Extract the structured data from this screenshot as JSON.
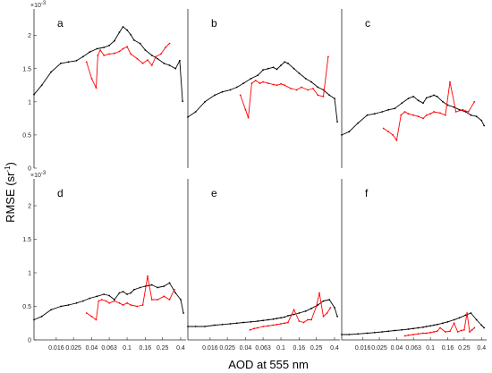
{
  "chart_data": {
    "type": "line",
    "layout": "2x3 small multiples",
    "xlabel": "AOD at 555 nm",
    "ylabel": "RMSE (sr",
    "ylabel_sup": "-1",
    "ylabel_close": ")",
    "y_exponent_label": "×10",
    "y_exponent_sup": "-3",
    "x_scale": "log",
    "xlim": [
      0.009,
      0.46
    ],
    "x_ticks": [
      0.016,
      0.025,
      0.04,
      0.063,
      0.1,
      0.16,
      0.25,
      0.4
    ],
    "x_tick_labels": [
      "0.016",
      "0.025",
      "0.04",
      "0.063",
      "0.1",
      "0.16",
      "0.25",
      "0.4"
    ],
    "ylim": [
      0,
      0.0024
    ],
    "y_ticks": [
      0,
      0.0005,
      0.001,
      0.0015,
      0.002
    ],
    "y_tick_labels": [
      "0",
      "0.5",
      "1",
      "1.5",
      "2"
    ],
    "series_colors": {
      "black": "#000000",
      "red": "#ff0000"
    },
    "grid": false,
    "panels": [
      {
        "id": "a",
        "black": {
          "x": [
            0.009,
            0.011,
            0.014,
            0.018,
            0.022,
            0.027,
            0.032,
            0.038,
            0.046,
            0.055,
            0.063,
            0.072,
            0.082,
            0.09,
            0.1,
            0.11,
            0.12,
            0.14,
            0.16,
            0.19,
            0.22,
            0.26,
            0.3,
            0.35,
            0.39,
            0.42
          ],
          "y": [
            0.00111,
            0.00125,
            0.00145,
            0.00158,
            0.0016,
            0.00162,
            0.00168,
            0.00175,
            0.0018,
            0.00182,
            0.00185,
            0.00192,
            0.00205,
            0.00213,
            0.00208,
            0.00201,
            0.00193,
            0.00188,
            0.00178,
            0.0017,
            0.00165,
            0.00158,
            0.00155,
            0.0015,
            0.00162,
            0.00101
          ]
        },
        "red": {
          "x": [
            0.035,
            0.04,
            0.045,
            0.047,
            0.05,
            0.055,
            0.063,
            0.072,
            0.082,
            0.09,
            0.1,
            0.11,
            0.13,
            0.15,
            0.17,
            0.19,
            0.21,
            0.24,
            0.27,
            0.3
          ],
          "y": [
            0.0016,
            0.00135,
            0.00121,
            0.0017,
            0.00178,
            0.0017,
            0.00172,
            0.00173,
            0.00176,
            0.0018,
            0.00183,
            0.00172,
            0.00165,
            0.00158,
            0.00163,
            0.00155,
            0.00168,
            0.00172,
            0.00182,
            0.00188
          ]
        }
      },
      {
        "id": "b",
        "black": {
          "x": [
            0.009,
            0.011,
            0.014,
            0.018,
            0.022,
            0.027,
            0.032,
            0.038,
            0.046,
            0.055,
            0.063,
            0.072,
            0.082,
            0.09,
            0.1,
            0.11,
            0.12,
            0.14,
            0.16,
            0.19,
            0.22,
            0.26,
            0.3,
            0.35,
            0.4,
            0.43
          ],
          "y": [
            0.00077,
            0.00085,
            0.001,
            0.0011,
            0.00115,
            0.00118,
            0.00122,
            0.00128,
            0.00135,
            0.0014,
            0.00148,
            0.0015,
            0.00152,
            0.00149,
            0.00155,
            0.0016,
            0.00158,
            0.0015,
            0.00143,
            0.00135,
            0.0013,
            0.00122,
            0.00118,
            0.0011,
            0.00105,
            0.0007
          ]
        },
        "red": {
          "x": [
            0.035,
            0.04,
            0.043,
            0.047,
            0.052,
            0.058,
            0.063,
            0.072,
            0.082,
            0.09,
            0.1,
            0.11,
            0.13,
            0.15,
            0.17,
            0.2,
            0.23,
            0.26,
            0.3,
            0.34
          ],
          "y": [
            0.0011,
            0.00088,
            0.00076,
            0.00128,
            0.00132,
            0.00128,
            0.0013,
            0.00128,
            0.00126,
            0.00125,
            0.00127,
            0.00125,
            0.0012,
            0.00118,
            0.00122,
            0.00118,
            0.0012,
            0.0011,
            0.00108,
            0.00168
          ]
        }
      },
      {
        "id": "c",
        "black": {
          "x": [
            0.009,
            0.011,
            0.014,
            0.018,
            0.022,
            0.027,
            0.032,
            0.038,
            0.046,
            0.055,
            0.063,
            0.072,
            0.082,
            0.09,
            0.1,
            0.11,
            0.12,
            0.14,
            0.16,
            0.19,
            0.22,
            0.26,
            0.3,
            0.35,
            0.4,
            0.43
          ],
          "y": [
            0.0005,
            0.00055,
            0.00068,
            0.0008,
            0.00082,
            0.00085,
            0.00088,
            0.0009,
            0.00098,
            0.00105,
            0.00108,
            0.00102,
            0.00098,
            0.00106,
            0.00108,
            0.0011,
            0.00108,
            0.001,
            0.00095,
            0.00092,
            0.00088,
            0.00085,
            0.0008,
            0.00078,
            0.00072,
            0.00064
          ]
        },
        "red": {
          "x": [
            0.028,
            0.032,
            0.036,
            0.04,
            0.045,
            0.05,
            0.055,
            0.063,
            0.072,
            0.082,
            0.09,
            0.1,
            0.11,
            0.13,
            0.15,
            0.17,
            0.2,
            0.24,
            0.28,
            0.33
          ],
          "y": [
            0.0006,
            0.00055,
            0.0005,
            0.00042,
            0.0008,
            0.00085,
            0.00082,
            0.0008,
            0.00078,
            0.00075,
            0.0008,
            0.00082,
            0.00085,
            0.00083,
            0.0008,
            0.0013,
            0.00085,
            0.00088,
            0.00085,
            0.001
          ]
        }
      },
      {
        "id": "d",
        "black": {
          "x": [
            0.009,
            0.011,
            0.014,
            0.018,
            0.022,
            0.027,
            0.032,
            0.038,
            0.046,
            0.055,
            0.063,
            0.072,
            0.082,
            0.09,
            0.1,
            0.11,
            0.12,
            0.14,
            0.16,
            0.19,
            0.22,
            0.26,
            0.3,
            0.35,
            0.4,
            0.43
          ],
          "y": [
            0.0003,
            0.00035,
            0.00045,
            0.0005,
            0.00052,
            0.00055,
            0.00058,
            0.00062,
            0.00065,
            0.00068,
            0.00066,
            0.0006,
            0.0007,
            0.00072,
            0.00068,
            0.0007,
            0.00075,
            0.00078,
            0.0008,
            0.00082,
            0.00078,
            0.0008,
            0.00085,
            0.0007,
            0.0006,
            0.0004
          ]
        },
        "red": {
          "x": [
            0.035,
            0.04,
            0.045,
            0.048,
            0.052,
            0.058,
            0.063,
            0.072,
            0.082,
            0.09,
            0.1,
            0.11,
            0.13,
            0.15,
            0.17,
            0.19,
            0.22,
            0.26,
            0.3,
            0.34
          ],
          "y": [
            0.0004,
            0.00035,
            0.0003,
            0.00058,
            0.0006,
            0.00058,
            0.00055,
            0.00058,
            0.00055,
            0.00052,
            0.00055,
            0.00052,
            0.0005,
            0.00052,
            0.00095,
            0.0006,
            0.0006,
            0.00065,
            0.0006,
            0.00075
          ]
        }
      },
      {
        "id": "e",
        "black": {
          "x": [
            0.009,
            0.011,
            0.014,
            0.018,
            0.022,
            0.027,
            0.032,
            0.038,
            0.046,
            0.055,
            0.063,
            0.072,
            0.082,
            0.09,
            0.1,
            0.11,
            0.12,
            0.14,
            0.16,
            0.19,
            0.22,
            0.26,
            0.3,
            0.35,
            0.4,
            0.43
          ],
          "y": [
            0.0002,
            0.0002,
            0.0002,
            0.00022,
            0.00023,
            0.00024,
            0.00025,
            0.00026,
            0.00027,
            0.00028,
            0.00029,
            0.0003,
            0.00031,
            0.00032,
            0.00033,
            0.00034,
            0.00036,
            0.00038,
            0.0004,
            0.00043,
            0.00047,
            0.00052,
            0.00058,
            0.0006,
            0.00048,
            0.00035
          ]
        },
        "red": {
          "x": [
            0.045,
            0.05,
            0.055,
            0.063,
            0.072,
            0.082,
            0.09,
            0.1,
            0.11,
            0.12,
            0.14,
            0.16,
            0.18,
            0.2,
            0.22,
            0.25,
            0.27,
            0.3,
            0.33,
            0.36
          ],
          "y": [
            0.00015,
            0.00017,
            0.00018,
            0.0002,
            0.00021,
            0.00022,
            0.00023,
            0.00024,
            0.00025,
            0.00026,
            0.00045,
            0.00028,
            0.00026,
            0.0003,
            0.0003,
            0.0005,
            0.0007,
            0.00035,
            0.0004,
            0.00048
          ]
        }
      },
      {
        "id": "f",
        "black": {
          "x": [
            0.009,
            0.011,
            0.014,
            0.018,
            0.022,
            0.027,
            0.032,
            0.038,
            0.046,
            0.055,
            0.063,
            0.072,
            0.082,
            0.09,
            0.1,
            0.11,
            0.12,
            0.14,
            0.16,
            0.19,
            0.22,
            0.26,
            0.3,
            0.35,
            0.4,
            0.43
          ],
          "y": [
            8e-05,
            8e-05,
            9e-05,
            0.0001,
            0.00011,
            0.00012,
            0.00013,
            0.00014,
            0.00015,
            0.00016,
            0.00017,
            0.00018,
            0.00019,
            0.0002,
            0.00021,
            0.00022,
            0.00023,
            0.00025,
            0.00027,
            0.0003,
            0.00033,
            0.00037,
            0.0004,
            0.0003,
            0.00022,
            0.00018
          ]
        },
        "red": {
          "x": [
            0.05,
            0.055,
            0.063,
            0.072,
            0.082,
            0.09,
            0.1,
            0.11,
            0.12,
            0.13,
            0.15,
            0.17,
            0.19,
            0.21,
            0.23,
            0.25,
            0.27,
            0.29,
            0.31,
            0.33
          ],
          "y": [
            6e-05,
            7e-05,
            8e-05,
            9e-05,
            0.0001,
            0.0001,
            0.00011,
            0.00012,
            0.00013,
            0.00018,
            0.00012,
            0.00013,
            0.00025,
            0.00012,
            0.00014,
            0.00015,
            0.0004,
            0.00012,
            0.00015,
            0.00018
          ]
        }
      }
    ]
  }
}
